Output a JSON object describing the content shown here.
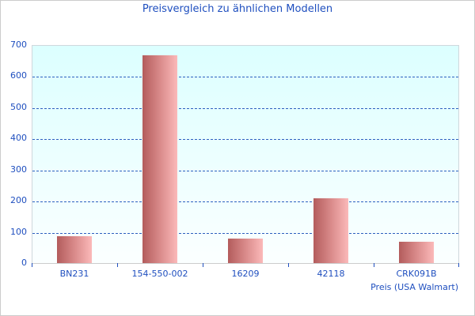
{
  "chart_data": {
    "type": "bar",
    "title": "Preisvergleich zu ähnlichen Modellen",
    "xlabel": "Preis (USA Walmart)",
    "ylabel": "",
    "categories": [
      "BN231",
      "154-550-002",
      "16209",
      "42118",
      "CRK091B"
    ],
    "values": [
      87,
      666,
      79,
      208,
      69
    ],
    "ylim": [
      0,
      700
    ],
    "yticks": [
      "0",
      "100",
      "200",
      "300",
      "400",
      "500",
      "600",
      "700"
    ],
    "grid": true,
    "legend": "none"
  },
  "colors": {
    "text": "#1f4fbf",
    "bar_dark": "#b35c5c",
    "bar_light": "#fbb9b9",
    "plot_bg_top": "#dcffff",
    "gridline": "#2d5fbf"
  }
}
